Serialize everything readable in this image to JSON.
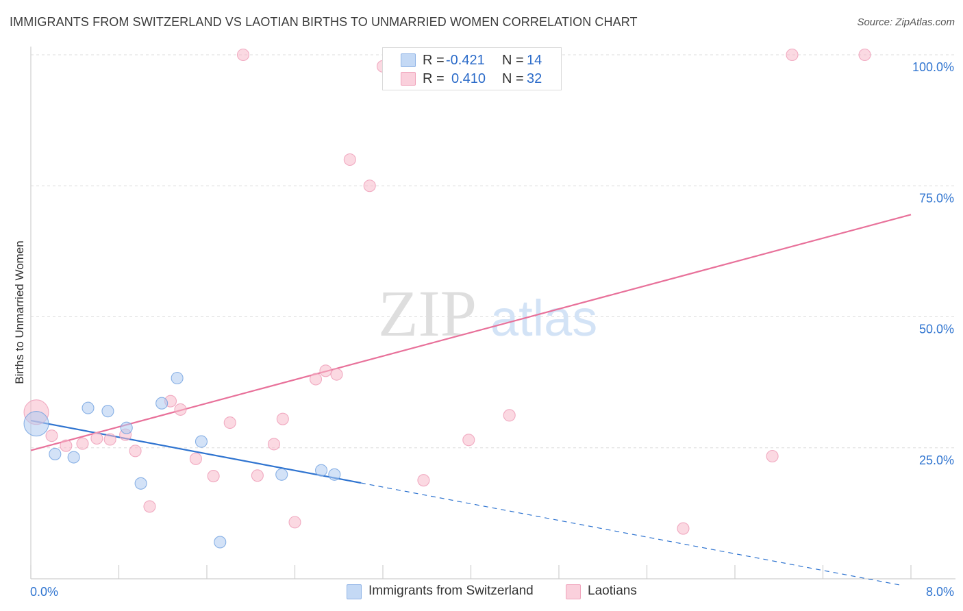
{
  "title": "IMMIGRANTS FROM SWITZERLAND VS LAOTIAN BIRTHS TO UNMARRIED WOMEN CORRELATION CHART",
  "source": "Source: ZipAtlas.com",
  "watermark": {
    "zip": "ZIP",
    "atlas": "atlas"
  },
  "stats": [
    {
      "r_label": "R =",
      "r_value": "-0.421",
      "n_label": "N =",
      "n_value": "14",
      "color": "#aecbf1"
    },
    {
      "r_label": "R =",
      "r_value": "0.410",
      "n_label": "N =",
      "n_value": "32",
      "color": "#f7b9cb"
    }
  ],
  "legend": [
    {
      "label": "Immigrants from Switzerland",
      "color": "#aecbf1"
    },
    {
      "label": "Laotians",
      "color": "#f7b9cb"
    }
  ],
  "chart_data": {
    "type": "scatter",
    "title": "IMMIGRANTS FROM SWITZERLAND VS LAOTIAN BIRTHS TO UNMARRIED WOMEN CORRELATION CHART",
    "xlabel": "",
    "ylabel": "Births to Unmarried Women",
    "xlim": [
      0,
      8
    ],
    "ylim": [
      0,
      102
    ],
    "x_tick_labels": [
      "0.0%",
      "8.0%"
    ],
    "y_ticks": [
      25,
      50,
      75,
      100
    ],
    "y_tick_labels": [
      "25.0%",
      "50.0%",
      "75.0%",
      "100.0%"
    ],
    "grid": true,
    "legend_position": "bottom",
    "series": [
      {
        "name": "Immigrants from Switzerland",
        "color": "#6fa0e0",
        "fill": "#aecbf1",
        "points": [
          {
            "x": 0.05,
            "y": 29.6,
            "s": "large"
          },
          {
            "x": 0.22,
            "y": 23.8
          },
          {
            "x": 0.39,
            "y": 23.2
          },
          {
            "x": 0.52,
            "y": 32.6
          },
          {
            "x": 0.7,
            "y": 32.0
          },
          {
            "x": 0.87,
            "y": 28.8
          },
          {
            "x": 1.0,
            "y": 18.2
          },
          {
            "x": 1.19,
            "y": 33.5
          },
          {
            "x": 1.33,
            "y": 38.3
          },
          {
            "x": 1.55,
            "y": 26.2
          },
          {
            "x": 1.72,
            "y": 7.0
          },
          {
            "x": 2.28,
            "y": 19.9
          },
          {
            "x": 2.64,
            "y": 20.7
          },
          {
            "x": 2.76,
            "y": 19.9
          }
        ],
        "trend": {
          "x0": 0.0,
          "y0": 30.2,
          "x1": 3.0,
          "y1": 18.3,
          "dash_to_x": 7.93,
          "dash_to_y": -1.3,
          "color": "#2f74d0"
        }
      },
      {
        "name": "Laotians",
        "color": "#ee9ab5",
        "fill": "#f7b9cb",
        "points": [
          {
            "x": 0.05,
            "y": 31.8,
            "s": "large"
          },
          {
            "x": 0.19,
            "y": 27.3
          },
          {
            "x": 0.32,
            "y": 25.4
          },
          {
            "x": 0.47,
            "y": 25.8
          },
          {
            "x": 0.6,
            "y": 26.8
          },
          {
            "x": 0.72,
            "y": 26.6
          },
          {
            "x": 0.86,
            "y": 27.5
          },
          {
            "x": 0.95,
            "y": 24.4
          },
          {
            "x": 1.08,
            "y": 13.8
          },
          {
            "x": 1.27,
            "y": 33.9
          },
          {
            "x": 1.36,
            "y": 32.3
          },
          {
            "x": 1.5,
            "y": 22.9
          },
          {
            "x": 1.66,
            "y": 19.6
          },
          {
            "x": 1.81,
            "y": 29.8
          },
          {
            "x": 1.93,
            "y": 100.0
          },
          {
            "x": 2.06,
            "y": 19.7
          },
          {
            "x": 2.21,
            "y": 25.7
          },
          {
            "x": 2.29,
            "y": 30.5
          },
          {
            "x": 2.4,
            "y": 10.8
          },
          {
            "x": 2.59,
            "y": 38.1
          },
          {
            "x": 2.68,
            "y": 39.7
          },
          {
            "x": 2.78,
            "y": 39.0
          },
          {
            "x": 2.9,
            "y": 80.0
          },
          {
            "x": 3.08,
            "y": 75.0
          },
          {
            "x": 3.2,
            "y": 97.8
          },
          {
            "x": 3.57,
            "y": 18.8
          },
          {
            "x": 3.98,
            "y": 26.5
          },
          {
            "x": 4.35,
            "y": 31.2
          },
          {
            "x": 5.93,
            "y": 9.6
          },
          {
            "x": 6.74,
            "y": 23.4
          },
          {
            "x": 6.92,
            "y": 100.0
          },
          {
            "x": 7.58,
            "y": 100.0
          }
        ],
        "trend": {
          "x0": 0.0,
          "y0": 24.5,
          "x1": 8.0,
          "y1": 69.5,
          "color": "#e8719a"
        }
      }
    ]
  }
}
